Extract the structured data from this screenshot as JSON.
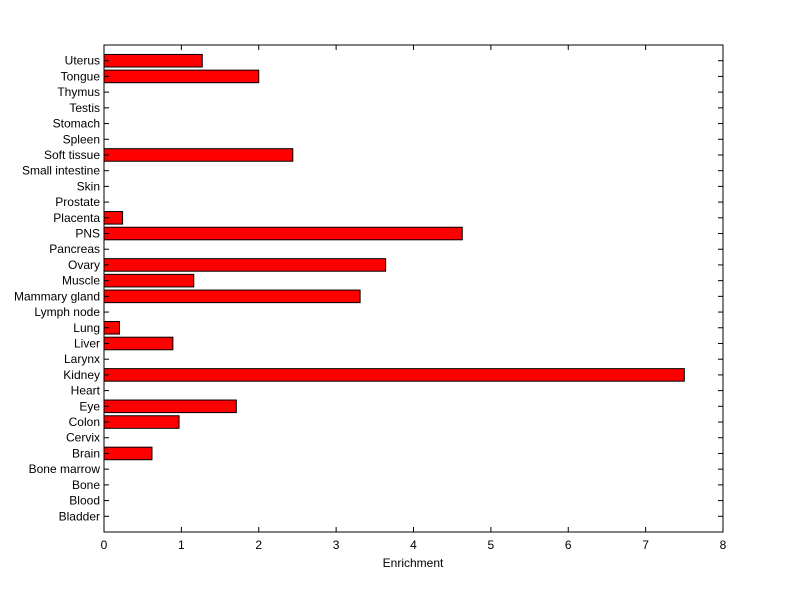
{
  "chart_data": {
    "type": "bar",
    "orientation": "horizontal",
    "title": "",
    "xlabel": "Enrichment",
    "ylabel": "",
    "xlim": [
      0,
      8
    ],
    "xticks": [
      0,
      1,
      2,
      3,
      4,
      5,
      6,
      7,
      8
    ],
    "grid": false,
    "bar_color": "#ff0000",
    "edge_color": "#000000",
    "categories": [
      "Uterus",
      "Tongue",
      "Thymus",
      "Testis",
      "Stomach",
      "Spleen",
      "Soft tissue",
      "Small intestine",
      "Skin",
      "Prostate",
      "Placenta",
      "PNS",
      "Pancreas",
      "Ovary",
      "Muscle",
      "Mammary gland",
      "Lymph node",
      "Lung",
      "Liver",
      "Larynx",
      "Kidney",
      "Heart",
      "Eye",
      "Colon",
      "Cervix",
      "Brain",
      "Bone marrow",
      "Bone",
      "Blood",
      "Bladder"
    ],
    "values": [
      1.27,
      2.0,
      0,
      0,
      0,
      0,
      2.44,
      0,
      0,
      0,
      0.24,
      4.63,
      0,
      3.64,
      1.16,
      3.31,
      0,
      0.2,
      0.89,
      0,
      7.5,
      0,
      1.71,
      0.97,
      0,
      0.62,
      0,
      0,
      0,
      0
    ]
  }
}
